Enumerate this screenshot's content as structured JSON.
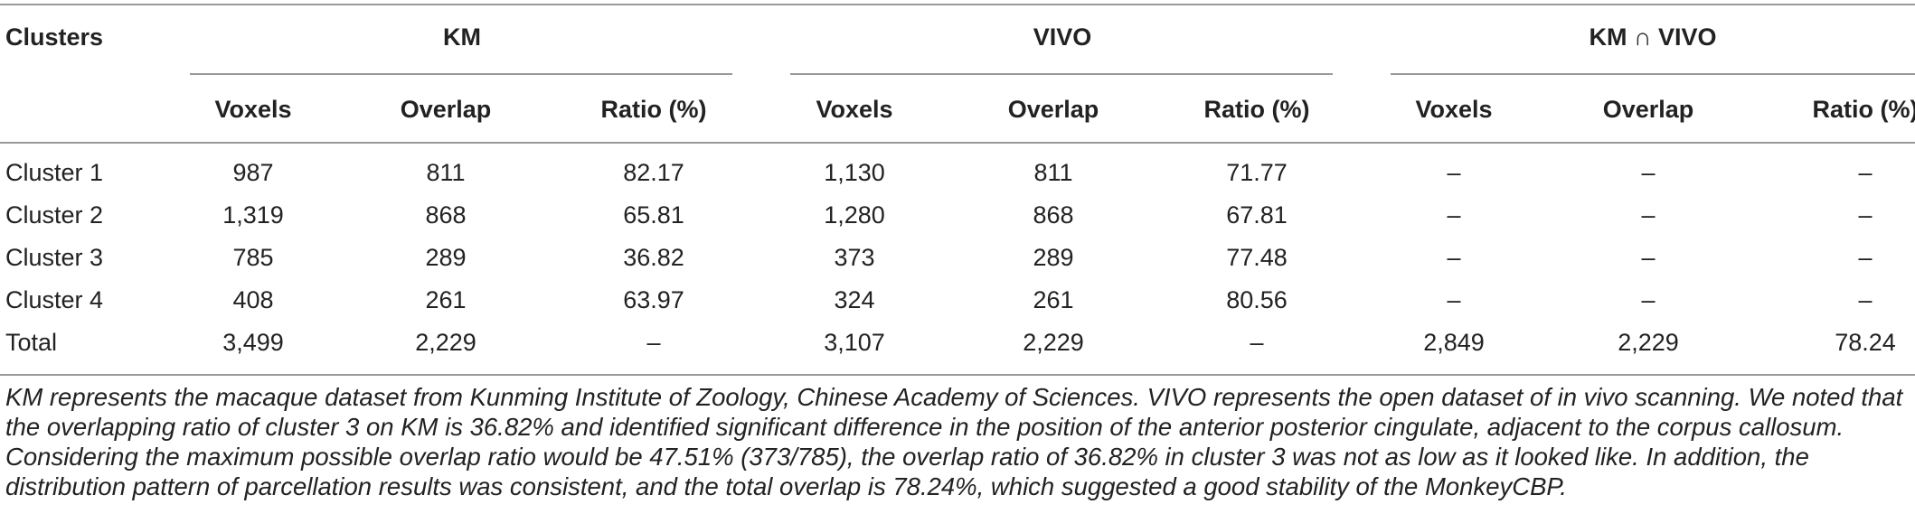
{
  "table": {
    "header_group": {
      "clusters_label": "Clusters",
      "km": "KM",
      "vivo": "VIVO",
      "intersect": "KM ∩ VIVO"
    },
    "subheaders": [
      "Voxels",
      "Overlap",
      "Ratio (%)",
      "Voxels",
      "Overlap",
      "Ratio (%)",
      "Voxels",
      "Overlap",
      "Ratio (%)"
    ],
    "rows": [
      {
        "label": "Cluster 1",
        "cells": [
          "987",
          "811",
          "82.17",
          "1,130",
          "811",
          "71.77",
          "–",
          "–",
          "–"
        ]
      },
      {
        "label": "Cluster 2",
        "cells": [
          "1,319",
          "868",
          "65.81",
          "1,280",
          "868",
          "67.81",
          "–",
          "–",
          "–"
        ]
      },
      {
        "label": "Cluster 3",
        "cells": [
          "785",
          "289",
          "36.82",
          "373",
          "289",
          "77.48",
          "–",
          "–",
          "–"
        ]
      },
      {
        "label": "Cluster 4",
        "cells": [
          "408",
          "261",
          "63.97",
          "324",
          "261",
          "80.56",
          "–",
          "–",
          "–"
        ]
      },
      {
        "label": "Total",
        "cells": [
          "3,499",
          "2,229",
          "–",
          "3,107",
          "2,229",
          "–",
          "2,849",
          "2,229",
          "78.24"
        ]
      }
    ],
    "footnote": "KM represents the macaque dataset from Kunming Institute of Zoology, Chinese Academy of Sciences. VIVO represents the open dataset of in vivo scanning. We noted that the overlapping ratio of cluster 3 on KM is 36.82% and identified significant difference in the position of the anterior posterior cingulate, adjacent to the corpus callosum. Considering the maximum possible overlap ratio would be 47.51% (373/785), the overlap ratio of 36.82% in cluster 3 was not as low as it looked like. In addition, the distribution pattern of parcellation results was consistent, and the total overlap is 78.24%, which suggested a good stability of the MonkeyCBP."
  }
}
